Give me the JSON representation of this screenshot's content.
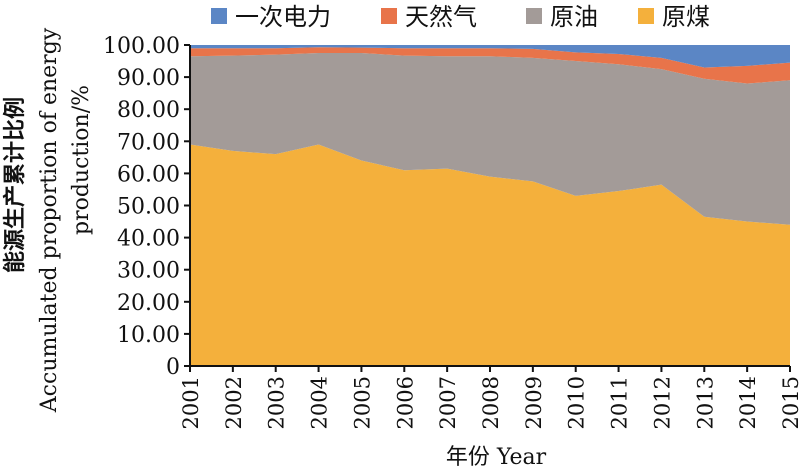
{
  "chart_data": {
    "type": "area",
    "stacked": true,
    "x": [
      "2001",
      "2002",
      "2003",
      "2004",
      "2005",
      "2006",
      "2007",
      "2008",
      "2009",
      "2010",
      "2011",
      "2012",
      "2013",
      "2014",
      "2015"
    ],
    "series": [
      {
        "name": "原煤",
        "color": "#f4b03c",
        "values": [
          69.0,
          67.0,
          66.0,
          69.0,
          64.0,
          61.0,
          61.5,
          59.0,
          57.5,
          53.0,
          54.5,
          56.5,
          46.5,
          45.0,
          44.0
        ]
      },
      {
        "name": "原油",
        "color": "#a39b98",
        "values": [
          27.5,
          29.7,
          31.0,
          28.5,
          33.5,
          35.7,
          35.0,
          37.5,
          38.5,
          42.0,
          39.5,
          36.0,
          43.0,
          43.0,
          45.0
        ]
      },
      {
        "name": "天然气",
        "color": "#e8744a",
        "values": [
          2.5,
          2.3,
          2.0,
          1.8,
          1.7,
          2.3,
          2.5,
          2.5,
          2.8,
          2.7,
          3.2,
          3.5,
          3.5,
          5.5,
          5.5
        ]
      },
      {
        "name": "一次电力",
        "color": "#5b86c5",
        "values": [
          1.0,
          1.0,
          1.0,
          0.7,
          0.8,
          1.0,
          1.0,
          1.0,
          1.2,
          2.3,
          2.8,
          4.0,
          7.0,
          6.5,
          5.5
        ]
      }
    ],
    "legend_order": [
      "一次电力",
      "天然气",
      "原油",
      "原煤"
    ],
    "legend_position": "top",
    "ylim": [
      0,
      100
    ],
    "yticks": [
      "0",
      "10.00",
      "20.00",
      "30.00",
      "40.00",
      "50.00",
      "60.00",
      "70.00",
      "80.00",
      "90.00",
      "100.00"
    ],
    "ylabel_cn": "能源生产累计比例",
    "ylabel_en_line1": "Accumulated proportion of energy",
    "ylabel_en_line2": "production/%",
    "xlabel": "年份 Year",
    "grid": false
  }
}
